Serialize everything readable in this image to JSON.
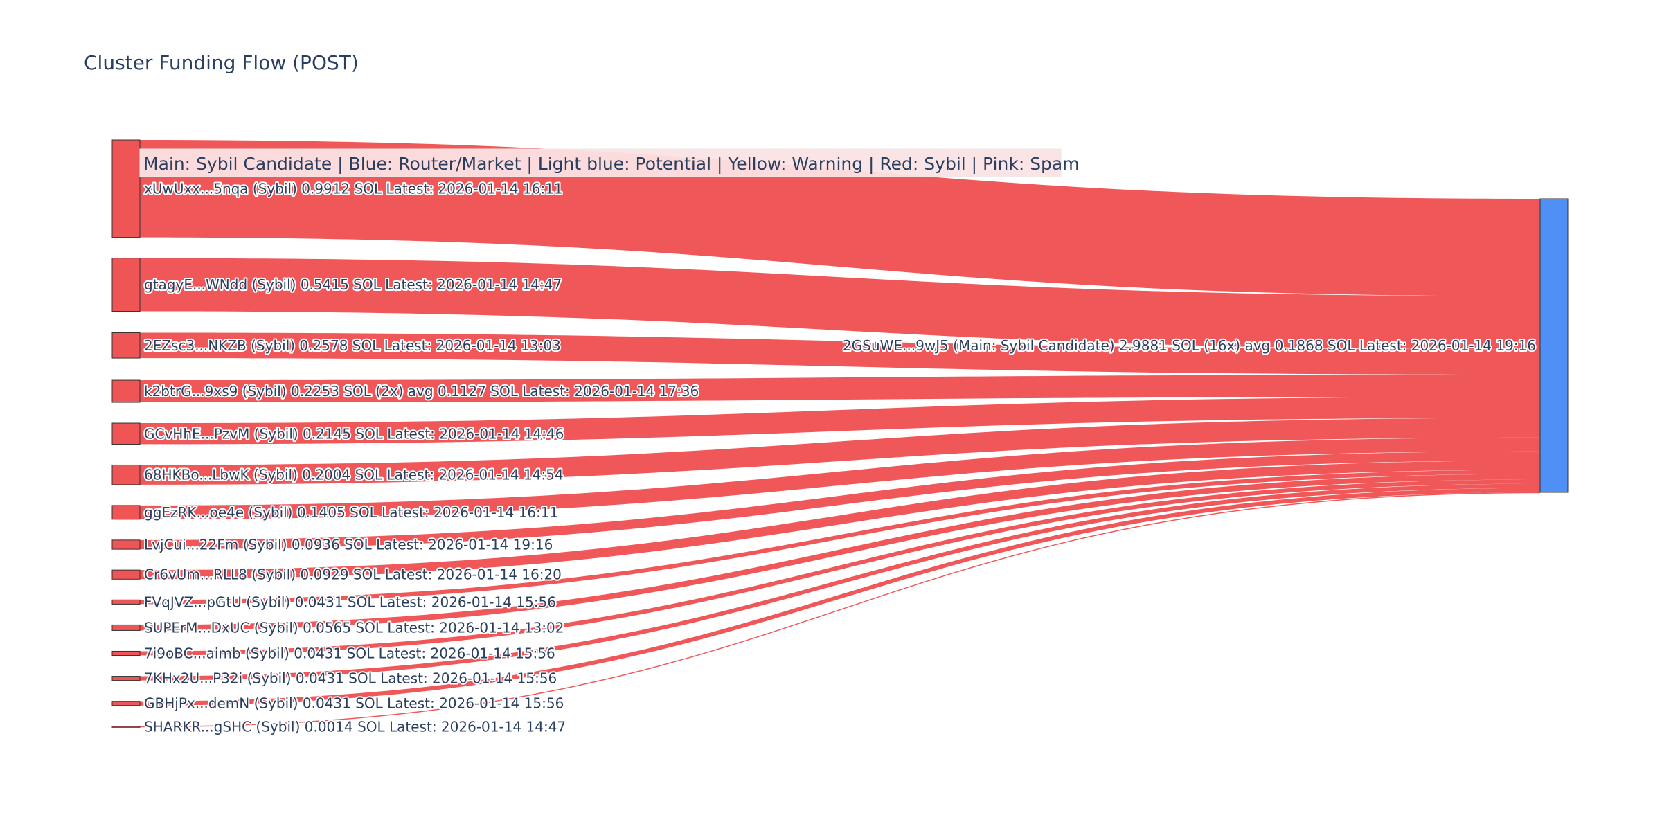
{
  "chart_data": {
    "type": "sankey",
    "title": "Cluster Funding Flow (POST)",
    "legend_note": "Main: Sybil Candidate  |  Blue: Router/Market | Light blue: Potential | Yellow: Warning | Red: Sybil | Pink: Spam",
    "colors": {
      "sybil": "#ef5555",
      "main": "#4f8ff6",
      "link": "#f05456",
      "node_border": "#333333",
      "legend_bg": "#fbe3e4"
    },
    "target": {
      "label": "2GSuWE...9wJ5 (Main: Sybil Candidate) 2.9881 SOL (16x) avg 0.1868 SOL Latest: 2026-01-14 19:16",
      "value": 2.9881,
      "category": "main"
    },
    "sources": [
      {
        "label": "xUwUxx...5nqa (Sybil) 0.9912 SOL Latest: 2026-01-14 16:11",
        "value": 0.9912,
        "category": "sybil"
      },
      {
        "label": "gtagyE...WNdd (Sybil) 0.5415 SOL Latest: 2026-01-14 14:47",
        "value": 0.5415,
        "category": "sybil"
      },
      {
        "label": "2EZsc3...NKZB (Sybil) 0.2578 SOL Latest: 2026-01-14 13:03",
        "value": 0.2578,
        "category": "sybil"
      },
      {
        "label": "k2btrG...9xs9 (Sybil) 0.2253 SOL (2x) avg 0.1127 SOL Latest: 2026-01-14 17:36",
        "value": 0.2253,
        "category": "sybil"
      },
      {
        "label": "GCvHhE...PzvM (Sybil) 0.2145 SOL Latest: 2026-01-14 14:46",
        "value": 0.2145,
        "category": "sybil"
      },
      {
        "label": "68HKBo...LbwK (Sybil) 0.2004 SOL Latest: 2026-01-14 14:54",
        "value": 0.2004,
        "category": "sybil"
      },
      {
        "label": "ggEzRK...oe4e (Sybil) 0.1405 SOL Latest: 2026-01-14 16:11",
        "value": 0.1405,
        "category": "sybil"
      },
      {
        "label": "LvjCui...22Fm (Sybil) 0.0936 SOL Latest: 2026-01-14 19:16",
        "value": 0.0936,
        "category": "sybil"
      },
      {
        "label": "Cr6vUm...RLL8 (Sybil) 0.0929 SOL Latest: 2026-01-14 16:20",
        "value": 0.0929,
        "category": "sybil"
      },
      {
        "label": "FVqJVZ...pGtU (Sybil) 0.0431 SOL Latest: 2026-01-14 15:56",
        "value": 0.0431,
        "category": "sybil"
      },
      {
        "label": "SUPErM...DxUC (Sybil) 0.0565 SOL Latest: 2026-01-14 13:02",
        "value": 0.0565,
        "category": "sybil"
      },
      {
        "label": "7i9oBC...aimb (Sybil) 0.0431 SOL Latest: 2026-01-14 15:56",
        "value": 0.0431,
        "category": "sybil"
      },
      {
        "label": "7KHx2U...P32i (Sybil) 0.0431 SOL Latest: 2026-01-14 15:56",
        "value": 0.0431,
        "category": "sybil"
      },
      {
        "label": "GBHjPx...demN (Sybil) 0.0431 SOL Latest: 2026-01-14 15:56",
        "value": 0.0431,
        "category": "sybil"
      },
      {
        "label": "SHARKR...gSHC (Sybil) 0.0014 SOL Latest: 2026-01-14 14:47",
        "value": 0.0014,
        "category": "sybil"
      }
    ]
  }
}
